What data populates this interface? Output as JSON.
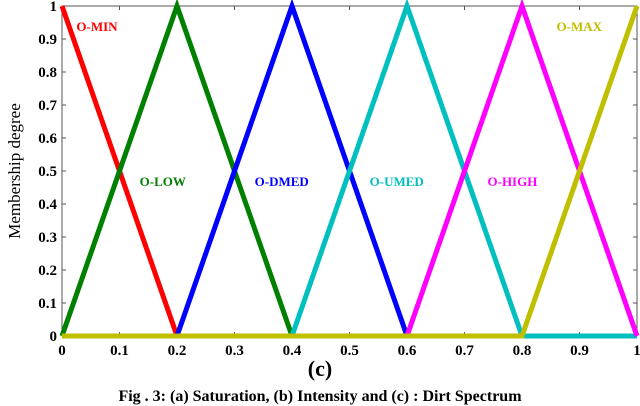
{
  "chart_data": {
    "type": "line",
    "title": "",
    "xlabel": "",
    "ylabel": "Membership degree",
    "xlim": [
      0,
      1
    ],
    "ylim": [
      0,
      1
    ],
    "grid": false,
    "legend_position": "inline labels",
    "x_ticks": [
      "0",
      "0.1",
      "0.2",
      "0.3",
      "0.4",
      "0.5",
      "0.6",
      "0.7",
      "0.8",
      "0.9",
      "1"
    ],
    "y_ticks": [
      "0",
      "0.1",
      "0.2",
      "0.3",
      "0.4",
      "0.5",
      "0.6",
      "0.7",
      "0.8",
      "0.9",
      "1"
    ],
    "series": [
      {
        "name": "O-MIN",
        "color": "#ff0000",
        "x": [
          0,
          0.2,
          1
        ],
        "y": [
          1,
          0,
          0
        ],
        "label_pos": [
          0.025,
          0.94
        ]
      },
      {
        "name": "O-LOW",
        "color": "#008000",
        "x": [
          0,
          0.2,
          0.4,
          1
        ],
        "y": [
          0,
          1,
          0,
          0
        ],
        "label_pos": [
          0.135,
          0.47
        ]
      },
      {
        "name": "O-DMED",
        "color": "#0000ff",
        "x": [
          0,
          0.2,
          0.4,
          0.6,
          1
        ],
        "y": [
          0,
          0,
          1,
          0,
          0
        ],
        "label_pos": [
          0.335,
          0.47
        ]
      },
      {
        "name": "O-UMED",
        "color": "#00bfbf",
        "x": [
          0,
          0.4,
          0.6,
          0.8,
          1
        ],
        "y": [
          0,
          0,
          1,
          0,
          0
        ],
        "label_pos": [
          0.535,
          0.47
        ]
      },
      {
        "name": "O-HIGH",
        "color": "#ff00ff",
        "x": [
          0,
          0.6,
          0.8,
          1
        ],
        "y": [
          0,
          0,
          1,
          0
        ],
        "label_pos": [
          0.74,
          0.47
        ]
      },
      {
        "name": "O-MAX",
        "color": "#bfbf00",
        "x": [
          0,
          0.8,
          1
        ],
        "y": [
          0,
          0,
          1
        ],
        "label_pos": [
          0.86,
          0.94
        ]
      }
    ],
    "annotations": [
      "(c)"
    ]
  },
  "figure": {
    "panel_label": "(c)",
    "caption": "Fig . 3: (a) Saturation, (b) Intensity and (c) : Dirt Spectrum"
  }
}
